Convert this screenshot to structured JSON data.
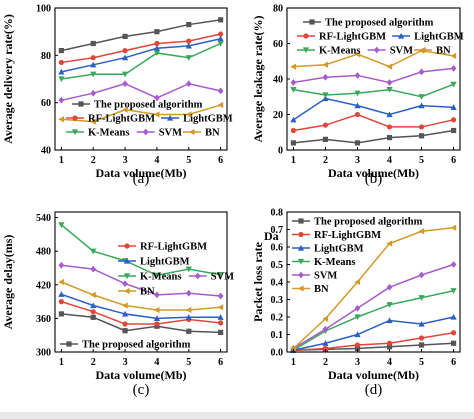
{
  "colors": {
    "The proposed algorithm": "#555555",
    "RF-LightGBM": "#e0463a",
    "LightGBM": "#2c5fc4",
    "K-Means": "#3aa85c",
    "SVM": "#a65ccb",
    "BN": "#d19a2a"
  },
  "chart_data": [
    {
      "type": "line",
      "caption": "(a)",
      "xlabel": "Data volume(Mb)",
      "ylabel": "Average delivery rate(%)",
      "xlim": [
        0.8,
        6.2
      ],
      "ylim": [
        40,
        100
      ],
      "xticks": [
        "1",
        "2",
        "3",
        "4",
        "5",
        "6"
      ],
      "yticks": [
        "40",
        "60",
        "80",
        "100"
      ],
      "legend_position": "bottom",
      "x": [
        1,
        2,
        3,
        4,
        5,
        6
      ],
      "series": [
        {
          "name": "The proposed algorithm",
          "marker": "square",
          "values": [
            82,
            85,
            88,
            90,
            93,
            95
          ]
        },
        {
          "name": "RF-LightGBM",
          "marker": "circle",
          "values": [
            77,
            79,
            82,
            85,
            86,
            89
          ]
        },
        {
          "name": "LightGBM",
          "marker": "triangle-up",
          "values": [
            73,
            76,
            79,
            83,
            84,
            87
          ]
        },
        {
          "name": "K-Means",
          "marker": "triangle-down",
          "values": [
            70,
            72,
            72,
            81,
            79,
            85
          ]
        },
        {
          "name": "SVM",
          "marker": "diamond",
          "values": [
            61,
            64,
            68,
            62,
            68,
            65
          ]
        },
        {
          "name": "BN",
          "marker": "triangle-left",
          "values": [
            53,
            52,
            57,
            55,
            55,
            59
          ]
        }
      ]
    },
    {
      "type": "line",
      "caption": "(b)",
      "xlabel": "Data volume(Mb)",
      "ylabel": "Average leakage rate(%)",
      "xlim": [
        0.8,
        6.2
      ],
      "ylim": [
        0,
        80
      ],
      "xticks": [
        "1",
        "2",
        "3",
        "4",
        "5",
        "6"
      ],
      "yticks": [
        "0",
        "20",
        "40",
        "60",
        "80"
      ],
      "legend_position": "top",
      "x": [
        1,
        2,
        3,
        4,
        5,
        6
      ],
      "series": [
        {
          "name": "The proposed algorithm",
          "marker": "square",
          "values": [
            4,
            6,
            4,
            7,
            8,
            11
          ]
        },
        {
          "name": "RF-LightGBM",
          "marker": "circle",
          "values": [
            11,
            14,
            20,
            13,
            13,
            17
          ]
        },
        {
          "name": "LightGBM",
          "marker": "triangle-up",
          "values": [
            17,
            29,
            25,
            20,
            25,
            24
          ]
        },
        {
          "name": "K-Means",
          "marker": "triangle-down",
          "values": [
            34,
            31,
            32,
            34,
            30,
            37
          ]
        },
        {
          "name": "SVM",
          "marker": "diamond",
          "values": [
            38,
            41,
            42,
            38,
            44,
            46
          ]
        },
        {
          "name": "BN",
          "marker": "triangle-left",
          "values": [
            47,
            48,
            54,
            47,
            56,
            53
          ]
        }
      ]
    },
    {
      "type": "line",
      "caption": "(c)",
      "xlabel": "Data volume(Mb)",
      "ylabel": "Average delay(ms)",
      "xlim": [
        0.8,
        6.2
      ],
      "ylim": [
        300,
        550
      ],
      "xticks": [
        "1",
        "2",
        "3",
        "4",
        "5",
        "6"
      ],
      "yticks": [
        "300",
        "360",
        "420",
        "480",
        "540"
      ],
      "legend_position": "top-right",
      "x": [
        1,
        2,
        3,
        4,
        5,
        6
      ],
      "series": [
        {
          "name": "The proposed algorithm",
          "marker": "square",
          "values": [
            368,
            362,
            338,
            346,
            337,
            335
          ]
        },
        {
          "name": "RF-LightGBM",
          "marker": "circle",
          "values": [
            390,
            372,
            350,
            350,
            358,
            352
          ]
        },
        {
          "name": "LightGBM",
          "marker": "triangle-up",
          "values": [
            403,
            383,
            368,
            360,
            362,
            362
          ]
        },
        {
          "name": "K-Means",
          "marker": "triangle-down",
          "values": [
            527,
            480,
            463,
            437,
            448,
            438
          ]
        },
        {
          "name": "SVM",
          "marker": "diamond",
          "values": [
            455,
            448,
            422,
            402,
            405,
            400
          ]
        },
        {
          "name": "BN",
          "marker": "triangle-left",
          "values": [
            425,
            402,
            383,
            375,
            375,
            380
          ]
        }
      ]
    },
    {
      "type": "line",
      "caption": "(d)",
      "xlabel": "Data volume(Mb)",
      "ylabel": "Packet loss rate",
      "title_fragment": "Da",
      "xlim": [
        0.8,
        6.2
      ],
      "ylim": [
        0,
        0.8
      ],
      "xticks": [
        "1",
        "2",
        "3",
        "4",
        "5",
        "6"
      ],
      "yticks": [
        "0.0",
        "0.1",
        "0.2",
        "0.3",
        "0.4",
        "0.5",
        "0.6",
        "0.7",
        "0.8"
      ],
      "legend_position": "top-left",
      "x": [
        1,
        2,
        3,
        4,
        5,
        6
      ],
      "series": [
        {
          "name": "The proposed algorithm",
          "marker": "square",
          "values": [
            0.01,
            0.015,
            0.02,
            0.03,
            0.04,
            0.05
          ]
        },
        {
          "name": "RF-LightGBM",
          "marker": "circle",
          "values": [
            0.01,
            0.02,
            0.04,
            0.05,
            0.08,
            0.11
          ]
        },
        {
          "name": "LightGBM",
          "marker": "triangle-up",
          "values": [
            0.01,
            0.05,
            0.1,
            0.18,
            0.16,
            0.2
          ]
        },
        {
          "name": "K-Means",
          "marker": "triangle-down",
          "values": [
            0.01,
            0.12,
            0.2,
            0.27,
            0.31,
            0.35
          ]
        },
        {
          "name": "SVM",
          "marker": "diamond",
          "values": [
            0.02,
            0.13,
            0.25,
            0.37,
            0.44,
            0.5
          ]
        },
        {
          "name": "BN",
          "marker": "triangle-left",
          "values": [
            0.02,
            0.19,
            0.4,
            0.62,
            0.69,
            0.71
          ]
        }
      ]
    }
  ]
}
